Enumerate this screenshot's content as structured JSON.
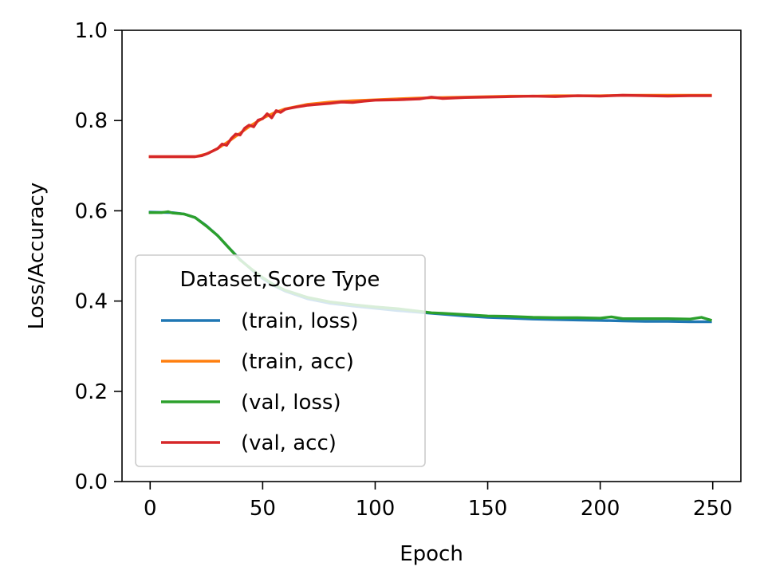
{
  "chart_data": {
    "type": "line",
    "title": "",
    "xlabel": "Epoch",
    "ylabel": "Loss/Accuracy",
    "xlim": [
      -12.5,
      262.5
    ],
    "ylim": [
      0.0,
      1.0
    ],
    "xticks": [
      0,
      50,
      100,
      150,
      200,
      250
    ],
    "yticks": [
      0.0,
      0.2,
      0.4,
      0.6,
      0.8,
      1.0
    ],
    "xtick_labels": [
      "0",
      "50",
      "100",
      "150",
      "200",
      "250"
    ],
    "ytick_labels": [
      "0.0",
      "0.2",
      "0.4",
      "0.6",
      "0.8",
      "1.0"
    ],
    "grid": false,
    "legend": {
      "title": "Dataset,Score Type",
      "placement": "lower-left"
    },
    "series": [
      {
        "name": "(train, loss)",
        "color": "#1f77b4",
        "x": [
          0,
          10,
          15,
          20,
          25,
          30,
          35,
          40,
          45,
          50,
          55,
          60,
          70,
          80,
          90,
          100,
          110,
          120,
          130,
          140,
          150,
          160,
          170,
          180,
          190,
          200,
          210,
          220,
          230,
          240,
          249
        ],
        "y": [
          0.597,
          0.596,
          0.593,
          0.585,
          0.567,
          0.545,
          0.518,
          0.492,
          0.47,
          0.45,
          0.434,
          0.422,
          0.405,
          0.395,
          0.389,
          0.384,
          0.379,
          0.375,
          0.371,
          0.367,
          0.364,
          0.362,
          0.36,
          0.359,
          0.358,
          0.357,
          0.356,
          0.355,
          0.355,
          0.354,
          0.354
        ]
      },
      {
        "name": "(train, acc)",
        "color": "#ff7f0e",
        "x": [
          0,
          10,
          20,
          25,
          30,
          35,
          40,
          45,
          50,
          55,
          60,
          70,
          80,
          90,
          100,
          110,
          120,
          130,
          140,
          150,
          160,
          170,
          180,
          190,
          200,
          210,
          220,
          230,
          240,
          249
        ],
        "y": [
          0.72,
          0.72,
          0.72,
          0.726,
          0.738,
          0.754,
          0.772,
          0.79,
          0.805,
          0.817,
          0.826,
          0.836,
          0.841,
          0.844,
          0.846,
          0.848,
          0.85,
          0.851,
          0.852,
          0.853,
          0.854,
          0.854,
          0.855,
          0.855,
          0.855,
          0.856,
          0.856,
          0.856,
          0.856,
          0.856
        ]
      },
      {
        "name": "(val, loss)",
        "color": "#2ca02c",
        "x": [
          0,
          5,
          8,
          10,
          15,
          20,
          25,
          30,
          35,
          40,
          45,
          50,
          55,
          60,
          65,
          70,
          80,
          90,
          100,
          110,
          120,
          125,
          130,
          140,
          150,
          160,
          170,
          180,
          190,
          200,
          205,
          210,
          220,
          230,
          240,
          245,
          249
        ],
        "y": [
          0.596,
          0.596,
          0.598,
          0.595,
          0.593,
          0.585,
          0.566,
          0.545,
          0.518,
          0.491,
          0.471,
          0.452,
          0.436,
          0.424,
          0.416,
          0.408,
          0.398,
          0.392,
          0.387,
          0.383,
          0.377,
          0.374,
          0.373,
          0.37,
          0.367,
          0.366,
          0.364,
          0.363,
          0.363,
          0.362,
          0.365,
          0.361,
          0.361,
          0.361,
          0.36,
          0.364,
          0.358
        ]
      },
      {
        "name": "(val, acc)",
        "color": "#d62728",
        "x": [
          0,
          10,
          20,
          23,
          26,
          28,
          30,
          32,
          34,
          36,
          38,
          40,
          42,
          44,
          46,
          48,
          50,
          52,
          54,
          56,
          58,
          60,
          62,
          65,
          70,
          75,
          80,
          85,
          90,
          95,
          100,
          110,
          120,
          125,
          130,
          140,
          150,
          160,
          170,
          180,
          190,
          200,
          210,
          220,
          230,
          240,
          249
        ],
        "y": [
          0.72,
          0.72,
          0.72,
          0.722,
          0.728,
          0.733,
          0.738,
          0.748,
          0.745,
          0.76,
          0.77,
          0.768,
          0.783,
          0.79,
          0.786,
          0.801,
          0.804,
          0.815,
          0.806,
          0.822,
          0.818,
          0.825,
          0.827,
          0.83,
          0.834,
          0.836,
          0.838,
          0.841,
          0.84,
          0.843,
          0.845,
          0.846,
          0.848,
          0.852,
          0.849,
          0.851,
          0.852,
          0.853,
          0.854,
          0.853,
          0.855,
          0.854,
          0.856,
          0.855,
          0.854,
          0.855,
          0.855
        ]
      }
    ]
  }
}
